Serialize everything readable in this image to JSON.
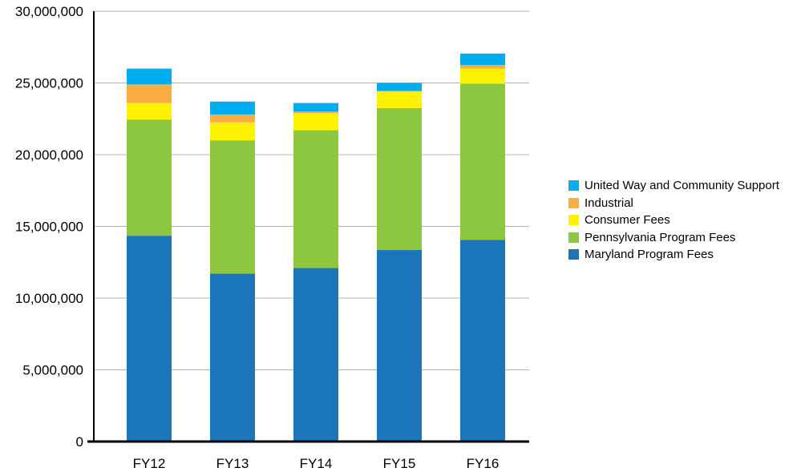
{
  "chart_data": {
    "type": "bar",
    "stacked": true,
    "categories": [
      "FY12",
      "FY13",
      "FY14",
      "FY15",
      "FY16"
    ],
    "y_tick_labels": [
      "0",
      "5,000,000",
      "10,000,000",
      "15,000,000",
      "20,000,000",
      "25,000,000",
      "30,000,000"
    ],
    "ylim": [
      0,
      30000000
    ],
    "grid": true,
    "legend_position": "right",
    "series": [
      {
        "name": "Maryland Program Fees",
        "color": "#1b75bb",
        "values": [
          14350000,
          11700000,
          12100000,
          13350000,
          14050000
        ]
      },
      {
        "name": "Pennsylvania Program Fees",
        "color": "#8dc63f",
        "values": [
          8100000,
          9300000,
          9600000,
          9900000,
          10900000
        ]
      },
      {
        "name": "Consumer Fees",
        "color": "#fff200",
        "values": [
          1150000,
          1250000,
          1200000,
          1150000,
          1050000
        ]
      },
      {
        "name": "Industrial",
        "color": "#fbad42",
        "values": [
          1300000,
          550000,
          100000,
          50000,
          250000
        ]
      },
      {
        "name": "United Way and Community Support",
        "color": "#00aeef",
        "values": [
          1100000,
          900000,
          600000,
          550000,
          800000
        ]
      }
    ]
  }
}
